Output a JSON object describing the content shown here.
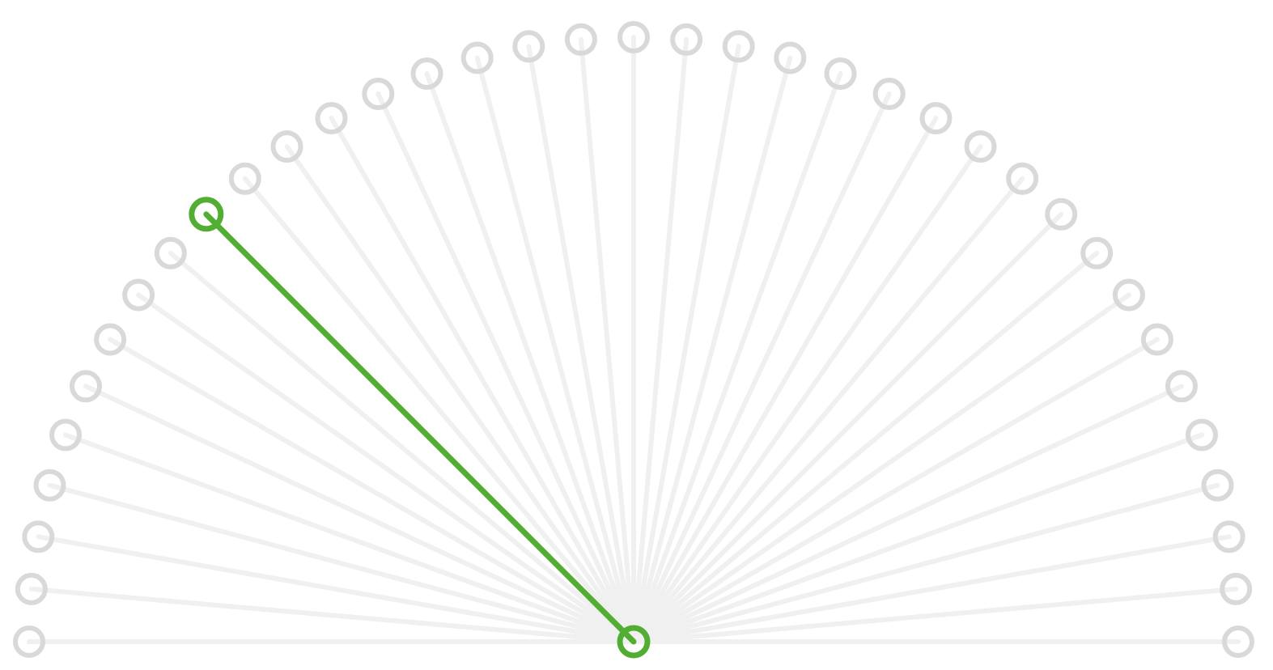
{
  "diagram": {
    "type": "radial-fan",
    "spoke_count": 37,
    "arc_degrees": 180,
    "selected_spoke_index": 9,
    "colors": {
      "background": "#ffffff",
      "spoke": "#f0f0f0",
      "node_ring": "#d9d9d9",
      "selected": "#52ae32"
    }
  }
}
